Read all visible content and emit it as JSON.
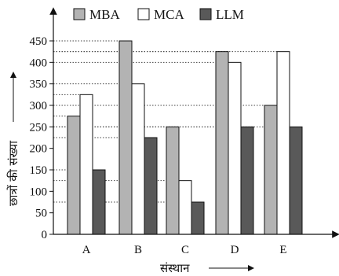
{
  "chart_data": {
    "type": "bar",
    "categories": [
      "A",
      "B",
      "C",
      "D",
      "E"
    ],
    "series": [
      {
        "name": "MBA",
        "values": [
          275,
          450,
          250,
          425,
          300
        ],
        "color": "#b3b3b3"
      },
      {
        "name": "MCA",
        "values": [
          325,
          350,
          125,
          400,
          425
        ],
        "color": "#ffffff"
      },
      {
        "name": "LLM",
        "values": [
          150,
          225,
          75,
          250,
          250
        ],
        "color": "#595959"
      }
    ],
    "xlabel": "संस्थान",
    "ylabel": "छात्रों की संख्या",
    "ylim": [
      0,
      450
    ],
    "yticks": [
      0,
      50,
      100,
      150,
      200,
      250,
      300,
      350,
      400,
      450
    ],
    "grid": "dotted horizontal lines at bar tops",
    "legend": "top"
  }
}
